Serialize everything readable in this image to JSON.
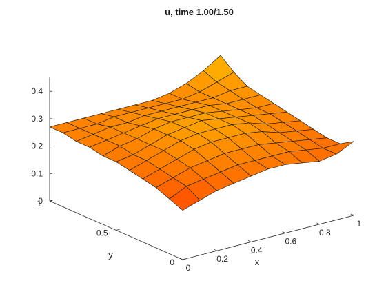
{
  "chart_data": {
    "type": "surface",
    "title": "u, time 1.00/1.50",
    "xlabel": "x",
    "ylabel": "y",
    "zlabel": "",
    "xlim": [
      0,
      1
    ],
    "ylim": [
      0,
      1
    ],
    "zlim": [
      0,
      0.45
    ],
    "x_ticks": [
      0,
      0.2,
      0.4,
      0.6,
      0.8,
      1
    ],
    "x_tick_labels": [
      "0",
      "0.2",
      "0.4",
      "0.6",
      "0.8",
      "1"
    ],
    "y_ticks": [
      0,
      0.5,
      1
    ],
    "y_tick_labels": [
      "0",
      "0.5",
      "1"
    ],
    "z_ticks": [
      0,
      0.1,
      0.2,
      0.3,
      0.4
    ],
    "z_tick_labels": [
      "0",
      "0.1",
      "0.2",
      "0.3",
      "0.4"
    ],
    "grid": false,
    "colormap": "hot",
    "color_min": "#ff4a00",
    "color_max": "#ffc200",
    "edge_color": "#1a1a1a",
    "mesh_x": [
      0,
      0.1,
      0.2,
      0.3,
      0.4,
      0.5,
      0.6,
      0.7,
      0.8,
      0.9,
      1
    ],
    "mesh_y": [
      0,
      0.1,
      0.2,
      0.3,
      0.4,
      0.5,
      0.6,
      0.7,
      0.8,
      0.9,
      1
    ],
    "z_rows_by_y": [
      [
        0.18,
        0.2,
        0.22,
        0.23,
        0.24,
        0.25,
        0.25,
        0.24,
        0.23,
        0.24,
        0.27
      ],
      [
        0.2,
        0.23,
        0.24,
        0.25,
        0.26,
        0.26,
        0.26,
        0.26,
        0.25,
        0.24,
        0.24
      ],
      [
        0.22,
        0.24,
        0.26,
        0.27,
        0.28,
        0.28,
        0.28,
        0.27,
        0.26,
        0.25,
        0.24
      ],
      [
        0.23,
        0.25,
        0.27,
        0.29,
        0.3,
        0.3,
        0.3,
        0.29,
        0.27,
        0.26,
        0.25
      ],
      [
        0.24,
        0.26,
        0.28,
        0.3,
        0.31,
        0.31,
        0.31,
        0.3,
        0.28,
        0.27,
        0.26
      ],
      [
        0.25,
        0.26,
        0.28,
        0.3,
        0.31,
        0.32,
        0.31,
        0.3,
        0.29,
        0.28,
        0.27
      ],
      [
        0.25,
        0.27,
        0.28,
        0.3,
        0.31,
        0.31,
        0.31,
        0.3,
        0.29,
        0.28,
        0.28
      ],
      [
        0.26,
        0.27,
        0.28,
        0.29,
        0.3,
        0.3,
        0.3,
        0.3,
        0.29,
        0.29,
        0.29
      ],
      [
        0.26,
        0.27,
        0.28,
        0.28,
        0.29,
        0.29,
        0.29,
        0.29,
        0.29,
        0.3,
        0.3
      ],
      [
        0.27,
        0.27,
        0.27,
        0.28,
        0.28,
        0.28,
        0.28,
        0.28,
        0.29,
        0.31,
        0.33
      ],
      [
        0.27,
        0.27,
        0.27,
        0.27,
        0.27,
        0.27,
        0.27,
        0.28,
        0.3,
        0.33,
        0.37
      ]
    ]
  }
}
